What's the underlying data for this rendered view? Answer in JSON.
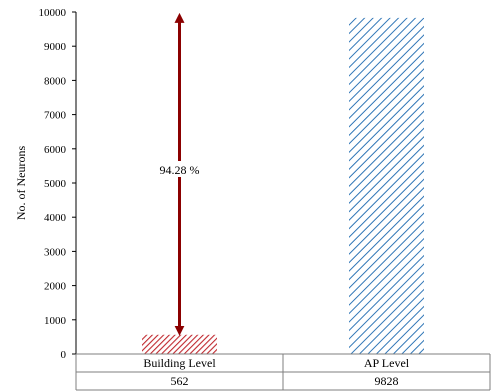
{
  "chart_data": {
    "type": "bar",
    "title": "",
    "xlabel": "",
    "ylabel": "No. of Neurons",
    "ylim": [
      0,
      10000
    ],
    "yticks": [
      0,
      1000,
      2000,
      3000,
      4000,
      5000,
      6000,
      7000,
      8000,
      9000,
      10000
    ],
    "categories": [
      "Building Level",
      "AP Level"
    ],
    "values": [
      562,
      9828
    ],
    "table_values": [
      "562",
      "9828"
    ],
    "bar_patterns": [
      "dense-diagonal-hatch",
      "sparse-diagonal-hatch"
    ],
    "bar_colors": [
      "#c0292f",
      "#2e75b6"
    ],
    "grid": false,
    "annotation": {
      "text": "94.28 %",
      "arrow_from": 562,
      "arrow_to": 9828,
      "color": "#8b0000"
    }
  }
}
